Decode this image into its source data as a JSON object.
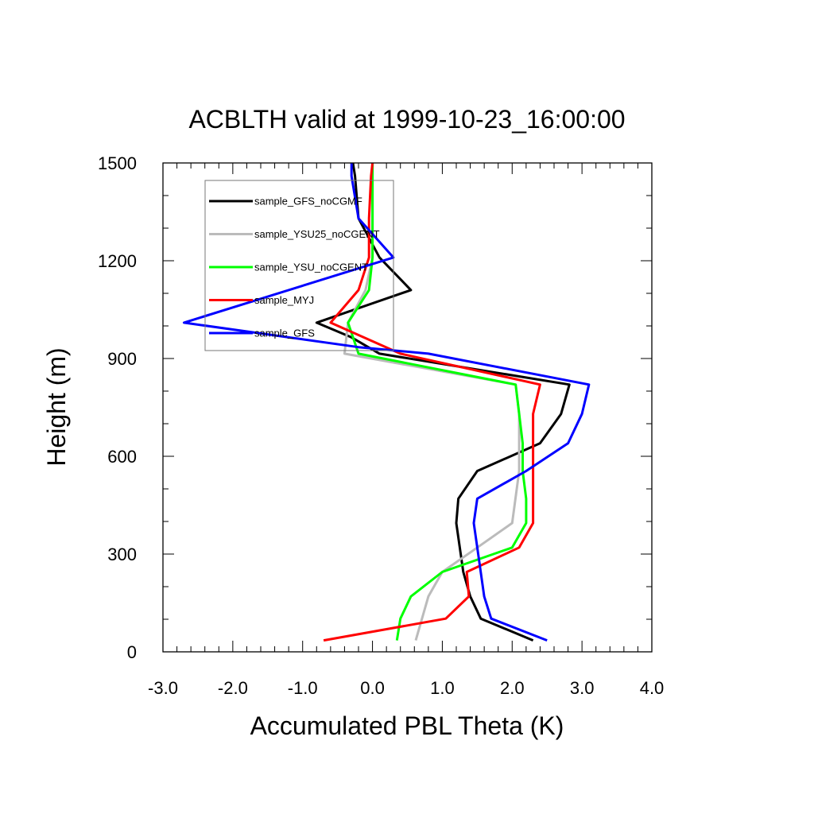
{
  "chart_data": {
    "type": "line",
    "title": "ACBLTH valid at 1999-10-23_16:00:00",
    "xlabel": "Accumulated PBL Theta (K)",
    "ylabel": "Height (m)",
    "xlim": [
      -3.0,
      4.0
    ],
    "ylim": [
      0,
      1500
    ],
    "xticks": [
      -3,
      -2,
      -1,
      0,
      1,
      2,
      3,
      4
    ],
    "xtick_labels": [
      "-3.0",
      "-2.0",
      "-1.0",
      "0.0",
      "1.0",
      "2.0",
      "3.0",
      "4.0"
    ],
    "yticks": [
      0,
      300,
      600,
      900,
      1200,
      1500
    ],
    "ytick_labels": [
      "0",
      "300",
      "600",
      "900",
      "1200",
      "1500"
    ],
    "grid": false,
    "legend_position": "top-left",
    "series": [
      {
        "name": "sample_GFS_noCGMF",
        "color": "#000000",
        "points": [
          [
            2.3,
            35
          ],
          [
            1.55,
            102
          ],
          [
            1.4,
            170
          ],
          [
            1.3,
            245
          ],
          [
            1.25,
            320
          ],
          [
            1.2,
            395
          ],
          [
            1.23,
            470
          ],
          [
            1.5,
            555
          ],
          [
            2.4,
            640
          ],
          [
            2.7,
            730
          ],
          [
            2.82,
            820
          ],
          [
            0.1,
            915
          ],
          [
            -0.3,
            965
          ],
          [
            -0.8,
            1010
          ],
          [
            0.55,
            1110
          ],
          [
            0.1,
            1210
          ],
          [
            -0.2,
            1330
          ],
          [
            -0.25,
            1460
          ],
          [
            -0.28,
            1500
          ]
        ]
      },
      {
        "name": "sample_YSU25_noCGENT",
        "color": "#bbbbbb",
        "points": [
          [
            0.62,
            35
          ],
          [
            0.8,
            170
          ],
          [
            1.0,
            245
          ],
          [
            1.5,
            320
          ],
          [
            2.0,
            395
          ],
          [
            2.1,
            555
          ],
          [
            2.1,
            730
          ],
          [
            2.05,
            820
          ],
          [
            -0.4,
            915
          ],
          [
            -0.35,
            1010
          ],
          [
            -0.1,
            1110
          ],
          [
            0.0,
            1210
          ],
          [
            0.0,
            1330
          ],
          [
            0.0,
            1460
          ],
          [
            0.0,
            1500
          ]
        ]
      },
      {
        "name": "sample_YSU_noCGENT",
        "color": "#00ff00",
        "points": [
          [
            0.35,
            35
          ],
          [
            0.4,
            102
          ],
          [
            0.55,
            170
          ],
          [
            1.0,
            245
          ],
          [
            2.0,
            320
          ],
          [
            2.2,
            395
          ],
          [
            2.2,
            470
          ],
          [
            2.15,
            555
          ],
          [
            2.15,
            640
          ],
          [
            2.1,
            730
          ],
          [
            2.05,
            820
          ],
          [
            -0.2,
            915
          ],
          [
            -0.35,
            1010
          ],
          [
            -0.05,
            1110
          ],
          [
            0.0,
            1210
          ],
          [
            0.0,
            1330
          ],
          [
            0.0,
            1460
          ],
          [
            0.0,
            1500
          ]
        ]
      },
      {
        "name": "sample_MYJ",
        "color": "#ff0000",
        "points": [
          [
            -0.7,
            35
          ],
          [
            1.05,
            102
          ],
          [
            1.38,
            170
          ],
          [
            1.35,
            245
          ],
          [
            2.1,
            320
          ],
          [
            2.3,
            395
          ],
          [
            2.3,
            555
          ],
          [
            2.3,
            730
          ],
          [
            2.4,
            820
          ],
          [
            0.4,
            915
          ],
          [
            -0.6,
            1010
          ],
          [
            -0.2,
            1110
          ],
          [
            -0.05,
            1210
          ],
          [
            -0.05,
            1330
          ],
          [
            -0.02,
            1460
          ],
          [
            0.0,
            1500
          ]
        ]
      },
      {
        "name": "sample_GFS",
        "color": "#0000ff",
        "points": [
          [
            2.5,
            35
          ],
          [
            1.7,
            102
          ],
          [
            1.6,
            170
          ],
          [
            1.5,
            320
          ],
          [
            1.45,
            395
          ],
          [
            1.5,
            470
          ],
          [
            2.2,
            555
          ],
          [
            2.8,
            640
          ],
          [
            3.0,
            730
          ],
          [
            3.1,
            820
          ],
          [
            0.8,
            915
          ],
          [
            -0.2,
            935
          ],
          [
            -2.7,
            1010
          ],
          [
            0.3,
            1210
          ],
          [
            -0.2,
            1330
          ],
          [
            -0.3,
            1460
          ],
          [
            -0.3,
            1500
          ]
        ]
      }
    ]
  }
}
